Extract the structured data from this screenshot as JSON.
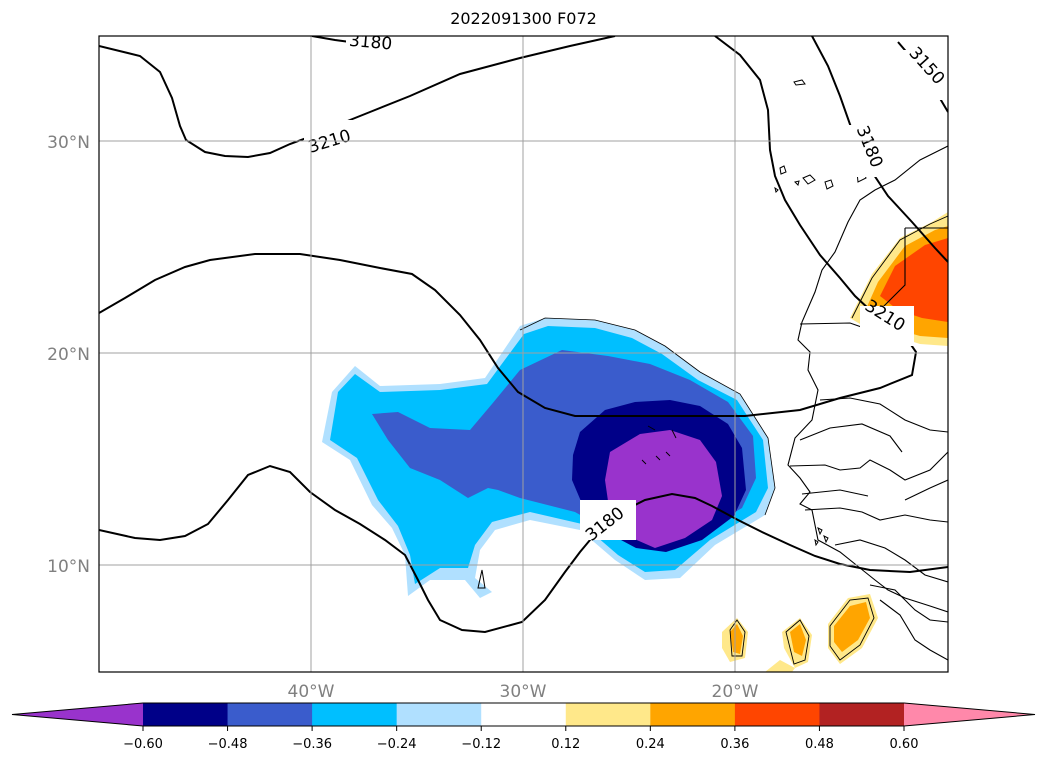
{
  "title": "2022091300 F072",
  "map": {
    "lat_labels": [
      "30°N",
      "20°N",
      "10°N"
    ],
    "lon_labels": [
      "40°W",
      "30°W",
      "20°W"
    ],
    "contour_labels": [
      "3180",
      "3210",
      "3180",
      "3150",
      "3210",
      "3180"
    ]
  },
  "colorbar": {
    "ticks": [
      "−0.60",
      "−0.48",
      "−0.36",
      "−0.24",
      "−0.12",
      "0.12",
      "0.24",
      "0.36",
      "0.48",
      "0.60"
    ],
    "colors": [
      "#9933cc",
      "#000088",
      "#3a5ccc",
      "#00bfff",
      "#b0e0ff",
      "#ffffff",
      "#ffe88a",
      "#ffa500",
      "#ff4500",
      "#b22222",
      "#ff88aa"
    ]
  }
}
